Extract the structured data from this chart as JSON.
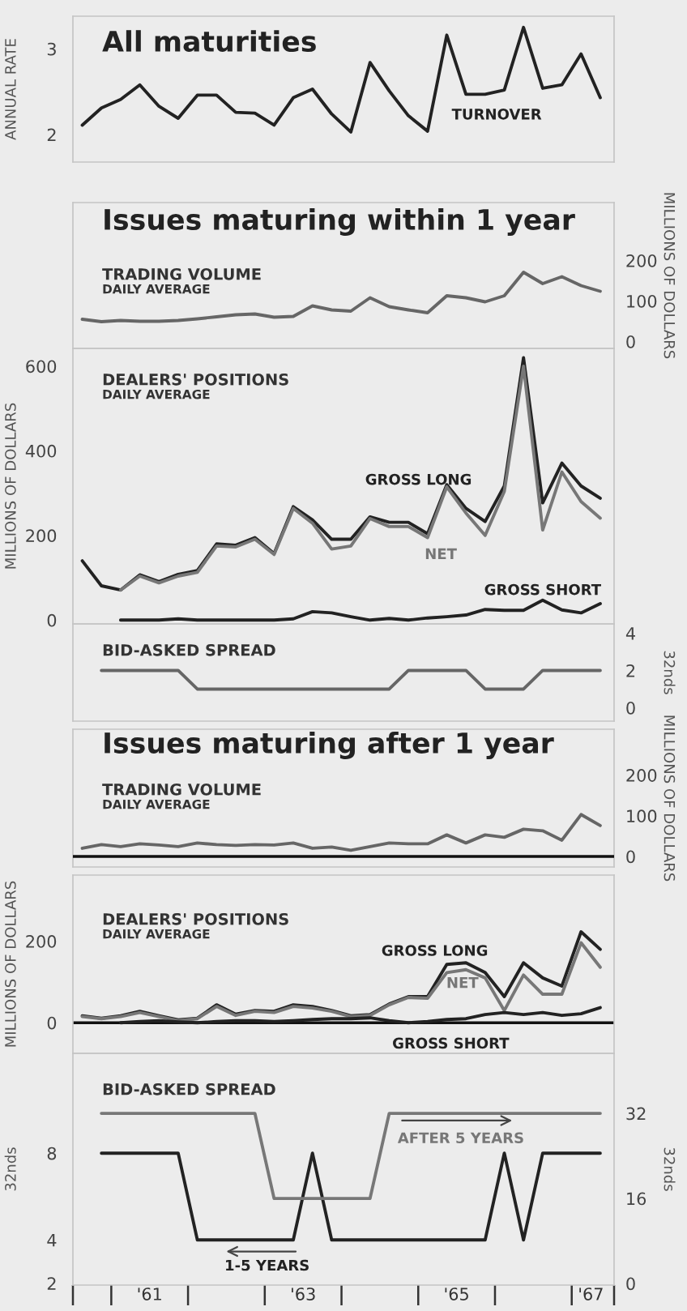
{
  "chart_data": [
    {
      "type": "line",
      "title": "All maturities",
      "ylabel": "ANNUAL RATE",
      "xlim": [
        "1960-07-01",
        "1967-07-20"
      ],
      "ylim": [
        1.68,
        3.38
      ],
      "yticks": [
        2,
        3
      ],
      "tick_labels": "y",
      "x": [
        "1960-08-15",
        "1960-11-15",
        "1961-02-15",
        "1961-05-15",
        "1961-08-15",
        "1961-11-15",
        "1962-02-15",
        "1962-05-15",
        "1962-08-15",
        "1962-11-15",
        "1963-02-15",
        "1963-05-15",
        "1963-08-15",
        "1963-11-15",
        "1964-02-15",
        "1964-05-15",
        "1964-08-15",
        "1964-11-15",
        "1965-02-15",
        "1965-05-15",
        "1965-08-15",
        "1965-11-15",
        "1966-02-15",
        "1966-05-15",
        "1966-08-15",
        "1966-11-15",
        "1967-02-15",
        "1967-05-15"
      ],
      "series": [
        {
          "name": "TURNOVER",
          "color": "#222222",
          "values": [
            2.11,
            2.31,
            2.41,
            2.58,
            2.33,
            2.19,
            2.46,
            2.46,
            2.26,
            2.25,
            2.11,
            2.43,
            2.53,
            2.24,
            2.03,
            2.84,
            2.51,
            2.22,
            2.04,
            3.16,
            2.47,
            2.47,
            2.52,
            3.25,
            2.54,
            2.58,
            2.94,
            2.43
          ]
        }
      ]
    },
    {
      "type": "line",
      "title": "Issues maturing within 1 year",
      "subtitle": "TRADING VOLUME",
      "annotations": [
        "DAILY AVERAGE"
      ],
      "y2label": "MILLIONS OF DOLLARS",
      "xlim": [
        "1960-07-01",
        "1967-07-20"
      ],
      "y2lim": [
        -17,
        343
      ],
      "y2ticks": [
        0,
        100,
        200
      ],
      "tick_labels": "y",
      "x": [
        "1960-08-15",
        "1960-11-15",
        "1961-02-15",
        "1961-05-15",
        "1961-08-15",
        "1961-11-15",
        "1962-02-15",
        "1962-05-15",
        "1962-08-15",
        "1962-11-15",
        "1963-02-15",
        "1963-05-15",
        "1963-08-15",
        "1963-11-15",
        "1964-02-15",
        "1964-05-15",
        "1964-08-15",
        "1964-11-15",
        "1965-02-15",
        "1965-05-15",
        "1965-08-15",
        "1965-11-15",
        "1966-02-15",
        "1966-05-15",
        "1966-08-15",
        "1966-11-15",
        "1967-02-15",
        "1967-05-15"
      ],
      "series": [
        {
          "color": "#666666",
          "axis": "y2",
          "values": [
            55,
            49,
            52,
            50,
            50,
            52,
            56,
            61,
            66,
            68,
            60,
            62,
            88,
            78,
            75,
            108,
            86,
            78,
            71,
            113,
            108,
            98,
            113,
            171,
            143,
            160,
            138,
            124
          ]
        }
      ]
    },
    {
      "type": "line",
      "subtitle": "DEALERS' POSITIONS",
      "annotations": [
        "DAILY AVERAGE"
      ],
      "ylabel": "MILLIONS OF DOLLARS",
      "xlim": [
        "1960-07-01",
        "1967-07-20"
      ],
      "ylim": [
        -9,
        642
      ],
      "yticks": [
        0,
        200,
        400,
        600
      ],
      "tick_labels": "y",
      "x": [
        "1960-08-15",
        "1960-11-15",
        "1961-02-15",
        "1961-05-15",
        "1961-08-15",
        "1961-11-15",
        "1962-02-15",
        "1962-05-15",
        "1962-08-15",
        "1962-11-15",
        "1963-02-15",
        "1963-05-15",
        "1963-08-15",
        "1963-11-15",
        "1964-02-15",
        "1964-05-15",
        "1964-08-15",
        "1964-11-15",
        "1965-02-15",
        "1965-05-15",
        "1965-08-15",
        "1965-11-15",
        "1966-02-15",
        "1966-05-15",
        "1966-08-15",
        "1966-11-15",
        "1967-02-15",
        "1967-05-15"
      ],
      "series": [
        {
          "name": "GROSS LONG",
          "color": "#222222",
          "values": [
            140,
            81,
            71,
            107,
            91,
            108,
            117,
            180,
            177,
            195,
            157,
            268,
            237,
            191,
            191,
            244,
            231,
            231,
            204,
            320,
            264,
            233,
            317,
            620,
            277,
            371,
            317,
            288
          ]
        },
        {
          "name": "NET",
          "color": "#777777",
          "values": [
            null,
            null,
            71,
            104,
            88,
            104,
            113,
            175,
            173,
            191,
            155,
            264,
            229,
            168,
            175,
            240,
            221,
            221,
            195,
            315,
            253,
            200,
            304,
            600,
            213,
            350,
            280,
            241
          ]
        },
        {
          "name": "GROSS SHORT",
          "color": "#222222",
          "values": [
            null,
            null,
            0,
            0,
            0,
            3,
            0,
            0,
            0,
            0,
            0,
            3,
            20,
            17,
            8,
            0,
            4,
            0,
            5,
            8,
            12,
            25,
            23,
            23,
            47,
            24,
            17,
            39
          ]
        }
      ]
    },
    {
      "type": "line",
      "subtitle": "BID-ASKED SPREAD",
      "y2label": "32nds",
      "xlim": [
        "1960-07-01",
        "1967-07-20"
      ],
      "y2lim": [
        -0.72,
        4.5
      ],
      "y2ticks": [
        0,
        2,
        4
      ],
      "tick_labels": "y",
      "x": [
        "1960-11-15",
        "1961-02-15",
        "1961-05-15",
        "1961-08-15",
        "1961-11-15",
        "1962-02-15",
        "1962-05-15",
        "1962-08-15",
        "1962-11-15",
        "1963-02-15",
        "1963-05-15",
        "1963-08-15",
        "1963-11-15",
        "1964-02-15",
        "1964-05-15",
        "1964-08-15",
        "1964-11-15",
        "1965-02-15",
        "1965-05-15",
        "1965-08-15",
        "1965-11-15",
        "1966-02-15",
        "1966-05-15",
        "1966-08-15",
        "1966-11-15",
        "1967-02-15",
        "1967-05-15"
      ],
      "series": [
        {
          "color": "#666666",
          "axis": "y2",
          "values": [
            2,
            2,
            2,
            2,
            2,
            1,
            1,
            1,
            1,
            1,
            1,
            1,
            1,
            1,
            1,
            1,
            2,
            2,
            2,
            2,
            1,
            1,
            1,
            2,
            2,
            2,
            2
          ]
        }
      ]
    },
    {
      "type": "line",
      "title": "Issues maturing after 1 year",
      "subtitle": "TRADING VOLUME",
      "annotations": [
        "DAILY AVERAGE"
      ],
      "y2label": "MILLIONS OF DOLLARS",
      "xlim": [
        "1960-07-01",
        "1967-07-20"
      ],
      "y2lim": [
        -26,
        313
      ],
      "y2ticks": [
        0,
        100,
        200
      ],
      "tick_labels": "y",
      "ref_lines": [
        {
          "axis": "y2",
          "value": 0,
          "color": "#111111"
        }
      ],
      "x": [
        "1960-08-15",
        "1960-11-15",
        "1961-02-15",
        "1961-05-15",
        "1961-08-15",
        "1961-11-15",
        "1962-02-15",
        "1962-05-15",
        "1962-08-15",
        "1962-11-15",
        "1963-02-15",
        "1963-05-15",
        "1963-08-15",
        "1963-11-15",
        "1964-02-15",
        "1964-05-15",
        "1964-08-15",
        "1964-11-15",
        "1965-02-15",
        "1965-05-15",
        "1965-08-15",
        "1965-11-15",
        "1966-02-15",
        "1966-05-15",
        "1966-08-15",
        "1966-11-15",
        "1967-02-15",
        "1967-05-15"
      ],
      "series": [
        {
          "color": "#666666",
          "axis": "y2",
          "values": [
            20,
            29,
            24,
            31,
            28,
            24,
            33,
            29,
            27,
            29,
            28,
            33,
            20,
            23,
            15,
            24,
            33,
            31,
            31,
            53,
            33,
            53,
            47,
            67,
            63,
            40,
            103,
            76
          ]
        }
      ]
    },
    {
      "type": "line",
      "subtitle": "DEALERS' POSITIONS",
      "annotations": [
        "DAILY AVERAGE"
      ],
      "ylabel": "MILLIONS OF DOLLARS",
      "xlim": [
        "1960-07-01",
        "1967-07-20"
      ],
      "ylim": [
        -75,
        362
      ],
      "yticks": [
        0,
        200
      ],
      "tick_labels": "y",
      "ref_lines": [
        {
          "axis": "y",
          "value": 0,
          "color": "#111111"
        }
      ],
      "x": [
        "1960-08-15",
        "1960-11-15",
        "1961-02-15",
        "1961-05-15",
        "1961-08-15",
        "1961-11-15",
        "1962-02-15",
        "1962-05-15",
        "1962-08-15",
        "1962-11-15",
        "1963-02-15",
        "1963-05-15",
        "1963-08-15",
        "1963-11-15",
        "1964-02-15",
        "1964-05-15",
        "1964-08-15",
        "1964-11-15",
        "1965-02-15",
        "1965-05-15",
        "1965-08-15",
        "1965-11-15",
        "1966-02-15",
        "1966-05-15",
        "1966-08-15",
        "1966-11-15",
        "1967-02-15",
        "1967-05-15"
      ],
      "series": [
        {
          "name": "GROSS LONG",
          "color": "#222222",
          "values": [
            17,
            11,
            17,
            28,
            17,
            7,
            11,
            44,
            21,
            30,
            28,
            44,
            40,
            30,
            17,
            20,
            46,
            64,
            64,
            143,
            147,
            123,
            64,
            147,
            110,
            90,
            223,
            180
          ]
        },
        {
          "name": "NET",
          "color": "#777777",
          "values": [
            15,
            10,
            15,
            25,
            15,
            5,
            10,
            40,
            18,
            28,
            25,
            40,
            36,
            28,
            15,
            18,
            44,
            62,
            60,
            123,
            130,
            110,
            30,
            117,
            70,
            70,
            196,
            136
          ]
        },
        {
          "name": "GROSS SHORT",
          "color": "#222222",
          "values": [
            null,
            null,
            0,
            3,
            5,
            2,
            0,
            3,
            5,
            5,
            3,
            5,
            8,
            10,
            10,
            12,
            5,
            0,
            3,
            8,
            10,
            20,
            25,
            20,
            25,
            18,
            22,
            37
          ]
        }
      ]
    },
    {
      "type": "line",
      "subtitle": "BID-ASKED SPREAD",
      "ylabel": "32nds",
      "y2label": "32nds",
      "xlim": [
        "1960-07-01",
        "1967-07-20"
      ],
      "ylim": [
        1.92,
        12.6
      ],
      "yticks": [
        2,
        4,
        8
      ],
      "y2lim": [
        -0.3,
        43.3
      ],
      "y2ticks": [
        0,
        16,
        32
      ],
      "xticks": [
        {
          "value": "1960-07-01",
          "label": null
        },
        {
          "value": "1961",
          "label": null
        },
        {
          "value": "1961-07-01",
          "label": "'61"
        },
        {
          "value": "1962",
          "label": null
        },
        {
          "value": "1963",
          "label": null
        },
        {
          "value": "1963-07-01",
          "label": "'63"
        },
        {
          "value": "1964",
          "label": null
        },
        {
          "value": "1965",
          "label": null
        },
        {
          "value": "1965-07-01",
          "label": "'65"
        },
        {
          "value": "1966",
          "label": null
        },
        {
          "value": "1967",
          "label": null
        },
        {
          "value": "1967-04-01",
          "label": "'67"
        },
        {
          "value": "1967-07-20",
          "label": null
        }
      ],
      "x": [
        "1960-11-15",
        "1961-02-15",
        "1961-05-15",
        "1961-08-15",
        "1961-11-15",
        "1962-02-15",
        "1962-05-15",
        "1962-08-15",
        "1962-11-15",
        "1963-02-15",
        "1963-05-15",
        "1963-08-15",
        "1963-11-15",
        "1964-02-15",
        "1964-05-15",
        "1964-08-15",
        "1964-11-15",
        "1965-02-15",
        "1965-05-15",
        "1965-08-15",
        "1965-11-15",
        "1966-02-15",
        "1966-05-15",
        "1966-08-15",
        "1966-11-15",
        "1967-02-15",
        "1967-05-15"
      ],
      "series": [
        {
          "name": "AFTER 5 YEARS",
          "color": "#777777",
          "axis": "y2",
          "values": [
            32,
            32,
            32,
            32,
            32,
            32,
            32,
            32,
            32,
            16,
            16,
            16,
            16,
            16,
            16,
            32,
            32,
            32,
            32,
            32,
            32,
            32,
            32,
            32,
            32,
            32,
            32
          ]
        },
        {
          "name": "1-5 YEARS",
          "color": "#222222",
          "values": [
            8,
            8,
            8,
            8,
            8,
            4,
            4,
            4,
            4,
            4,
            4,
            8,
            4,
            4,
            4,
            4,
            4,
            4,
            4,
            4,
            4,
            8,
            4,
            8,
            8,
            8,
            8
          ]
        }
      ]
    }
  ]
}
